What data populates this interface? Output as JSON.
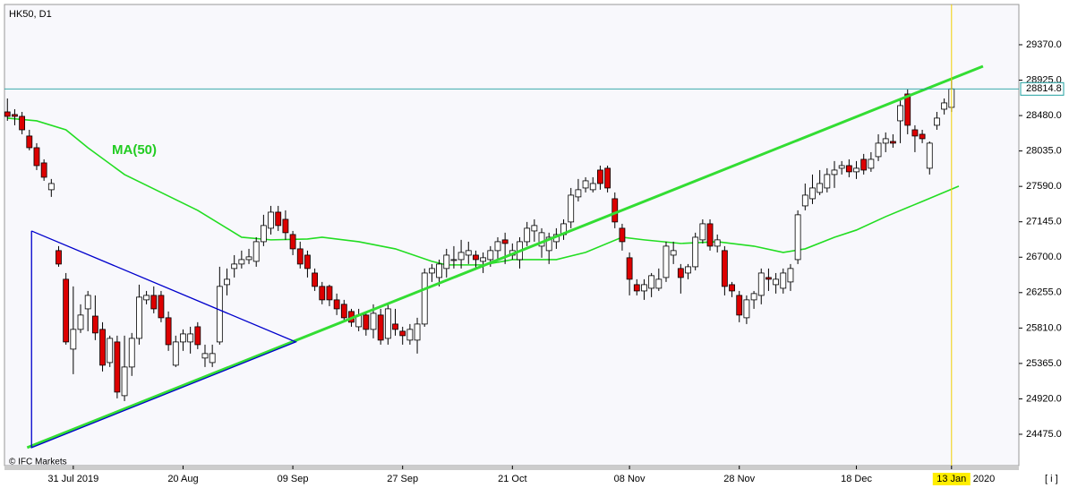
{
  "chart_data": {
    "type": "candlestick",
    "title": "HK50, D1",
    "ma_label": "MA(50)",
    "watermark": "© IFC Markets",
    "info_button": "[ i ]",
    "year_marker": "2020",
    "categories": [
      null,
      null,
      null,
      null,
      null,
      null,
      null,
      null,
      null,
      "31 Jul 2019",
      null,
      null,
      null,
      null,
      null,
      null,
      null,
      null,
      null,
      null,
      null,
      null,
      null,
      null,
      "20 Aug",
      null,
      null,
      null,
      null,
      null,
      null,
      null,
      null,
      null,
      null,
      null,
      null,
      null,
      null,
      "09 Sep",
      null,
      null,
      null,
      null,
      null,
      null,
      null,
      null,
      null,
      null,
      null,
      null,
      null,
      null,
      "27 Sep",
      null,
      null,
      null,
      null,
      null,
      null,
      null,
      null,
      null,
      null,
      null,
      null,
      null,
      null,
      "21 Oct",
      null,
      null,
      null,
      null,
      null,
      null,
      null,
      null,
      null,
      null,
      null,
      null,
      null,
      null,
      null,
      "08 Nov",
      null,
      null,
      null,
      null,
      null,
      null,
      null,
      null,
      null,
      null,
      null,
      null,
      null,
      null,
      "28 Nov",
      null,
      null,
      null,
      null,
      null,
      null,
      null,
      null,
      null,
      null,
      null,
      null,
      null,
      null,
      null,
      "18 Dec",
      null,
      null,
      null,
      null,
      null,
      null,
      null,
      null,
      null,
      null,
      null,
      null,
      "13 Jan"
    ],
    "candles": [
      [
        28526,
        28695,
        28414,
        28470
      ],
      [
        28493,
        28560,
        28358,
        28470
      ],
      [
        28470,
        28526,
        28245,
        28301
      ],
      [
        28223,
        28301,
        28043,
        28076
      ],
      [
        28076,
        28133,
        27795,
        27851
      ],
      [
        27885,
        27930,
        27660,
        27705
      ],
      [
        27548,
        27683,
        27458,
        27626
      ],
      [
        26783,
        26839,
        26580,
        26614
      ],
      [
        26423,
        26501,
        25601,
        25635
      ],
      [
        25545,
        26333,
        25230,
        25793
      ],
      [
        25793,
        26108,
        25748,
        25973
      ],
      [
        26051,
        26276,
        25770,
        26220
      ],
      [
        25960,
        26220,
        25658,
        25748
      ],
      [
        25793,
        25883,
        25264,
        25343
      ],
      [
        25376,
        25714,
        25320,
        25680
      ],
      [
        25635,
        25714,
        24926,
        25005
      ],
      [
        24960,
        25714,
        24892,
        25320
      ],
      [
        25320,
        25748,
        25208,
        25680
      ],
      [
        25680,
        26355,
        25601,
        26198
      ],
      [
        26164,
        26276,
        26108,
        26220
      ],
      [
        26220,
        26333,
        25995,
        26051
      ],
      [
        26220,
        26276,
        25883,
        25939
      ],
      [
        25939,
        26018,
        25523,
        25601
      ],
      [
        25343,
        25714,
        25320,
        25635
      ],
      [
        25635,
        25793,
        25523,
        25736
      ],
      [
        25635,
        25826,
        25489,
        25736
      ],
      [
        25826,
        25883,
        25545,
        25601
      ],
      [
        25433,
        25601,
        25320,
        25489
      ],
      [
        25376,
        25601,
        25320,
        25489
      ],
      [
        25635,
        26580,
        25601,
        26333
      ],
      [
        26355,
        26558,
        26220,
        26423
      ],
      [
        26558,
        26726,
        26445,
        26614
      ],
      [
        26614,
        26783,
        26558,
        26670
      ],
      [
        26670,
        26805,
        26614,
        26704
      ],
      [
        26648,
        26951,
        26580,
        26895
      ],
      [
        26895,
        27233,
        26839,
        27098
      ],
      [
        27064,
        27345,
        26985,
        27266
      ],
      [
        27266,
        27345,
        27030,
        27098
      ],
      [
        27176,
        27289,
        26918,
        27008
      ],
      [
        26985,
        27030,
        26726,
        26805
      ],
      [
        26805,
        26895,
        26558,
        26614
      ],
      [
        26726,
        26783,
        26445,
        26558
      ],
      [
        26501,
        26558,
        26276,
        26333
      ],
      [
        26333,
        26389,
        26108,
        26164
      ],
      [
        26333,
        26355,
        26085,
        26164
      ],
      [
        26164,
        26243,
        25973,
        26051
      ],
      [
        26108,
        26164,
        25883,
        25939
      ],
      [
        26018,
        26051,
        25826,
        25883
      ],
      [
        25826,
        26051,
        25770,
        25973
      ],
      [
        25973,
        26018,
        25714,
        25793
      ],
      [
        25793,
        26108,
        25680,
        25995
      ],
      [
        25973,
        26051,
        25601,
        25658
      ],
      [
        25680,
        26108,
        25601,
        26051
      ],
      [
        25860,
        26051,
        25714,
        25793
      ],
      [
        25770,
        25826,
        25601,
        25714
      ],
      [
        25658,
        25860,
        25601,
        25793
      ],
      [
        25658,
        25939,
        25489,
        25860
      ],
      [
        25860,
        26558,
        25826,
        26501
      ],
      [
        26501,
        26614,
        26389,
        26558
      ],
      [
        26445,
        26670,
        26333,
        26614
      ],
      [
        26558,
        26805,
        26445,
        26726
      ],
      [
        26670,
        26839,
        26558,
        26670
      ],
      [
        26670,
        26918,
        26558,
        26760
      ],
      [
        26726,
        26895,
        26614,
        26783
      ],
      [
        26726,
        26783,
        26558,
        26670
      ],
      [
        26648,
        26760,
        26501,
        26693
      ],
      [
        26670,
        26839,
        26580,
        26783
      ],
      [
        26783,
        26951,
        26670,
        26895
      ],
      [
        26918,
        27008,
        26614,
        26873
      ],
      [
        26726,
        26873,
        26670,
        26783
      ],
      [
        26670,
        26951,
        26558,
        26895
      ],
      [
        26895,
        27143,
        26839,
        27064
      ],
      [
        27030,
        27176,
        26895,
        27098
      ],
      [
        26839,
        27064,
        26693,
        27008
      ],
      [
        26783,
        27008,
        26614,
        26951
      ],
      [
        26895,
        27064,
        26805,
        26985
      ],
      [
        26985,
        27176,
        26918,
        27120
      ],
      [
        27143,
        27570,
        27064,
        27480
      ],
      [
        27458,
        27683,
        27401,
        27548
      ],
      [
        27570,
        27705,
        27514,
        27660
      ],
      [
        27548,
        27705,
        27514,
        27626
      ],
      [
        27795,
        27851,
        27548,
        27626
      ],
      [
        27818,
        27851,
        27514,
        27570
      ],
      [
        27435,
        27514,
        27064,
        27143
      ],
      [
        27064,
        27120,
        26783,
        26895
      ],
      [
        26693,
        26760,
        26220,
        26423
      ],
      [
        26355,
        26423,
        26220,
        26276
      ],
      [
        26276,
        26423,
        26164,
        26355
      ],
      [
        26310,
        26501,
        26198,
        26468
      ],
      [
        26310,
        26558,
        26276,
        26423
      ],
      [
        26445,
        26895,
        26389,
        26839
      ],
      [
        26726,
        26895,
        26614,
        26783
      ],
      [
        26558,
        26614,
        26243,
        26445
      ],
      [
        26501,
        26614,
        26423,
        26580
      ],
      [
        26580,
        27008,
        26535,
        26951
      ],
      [
        26918,
        27176,
        26873,
        27120
      ],
      [
        27120,
        27176,
        26783,
        26839
      ],
      [
        26839,
        26985,
        26760,
        26918
      ],
      [
        26783,
        26839,
        26220,
        26333
      ],
      [
        26355,
        26389,
        26198,
        26276
      ],
      [
        26220,
        26276,
        25883,
        25973
      ],
      [
        25939,
        26220,
        25860,
        26164
      ],
      [
        26164,
        26276,
        26051,
        26243
      ],
      [
        26220,
        26558,
        26108,
        26501
      ],
      [
        26445,
        26558,
        26276,
        26423
      ],
      [
        26355,
        26501,
        26243,
        26423
      ],
      [
        26310,
        26558,
        26243,
        26501
      ],
      [
        26389,
        26614,
        26276,
        26558
      ],
      [
        26670,
        27289,
        26614,
        27233
      ],
      [
        27345,
        27626,
        27289,
        27480
      ],
      [
        27435,
        27739,
        27368,
        27570
      ],
      [
        27514,
        27795,
        27480,
        27626
      ],
      [
        27570,
        27818,
        27514,
        27739
      ],
      [
        27739,
        27908,
        27570,
        27795
      ],
      [
        27818,
        27908,
        27739,
        27851
      ],
      [
        27851,
        27930,
        27705,
        27773
      ],
      [
        27773,
        27908,
        27683,
        27818
      ],
      [
        27930,
        27998,
        27739,
        27795
      ],
      [
        27818,
        28020,
        27773,
        27930
      ],
      [
        27964,
        28245,
        27908,
        28133
      ],
      [
        28133,
        28268,
        28020,
        28189
      ],
      [
        28155,
        28245,
        28076,
        28133
      ],
      [
        28414,
        28695,
        28133,
        28605
      ],
      [
        28751,
        28808,
        28245,
        28358
      ],
      [
        28301,
        28358,
        28020,
        28223
      ],
      [
        28245,
        28301,
        28133,
        28189
      ],
      [
        27818,
        28155,
        27739,
        28133
      ],
      [
        28358,
        28526,
        28301,
        28448
      ],
      [
        28560,
        28695,
        28493,
        28639
      ],
      [
        28583,
        28943,
        28526,
        28814.8
      ]
    ],
    "ma": {
      "name": "MA(50)",
      "color": "#22dd22",
      "x": [
        0,
        4,
        8,
        11,
        16,
        21,
        26,
        30,
        32,
        36,
        41,
        43,
        48,
        53,
        58,
        60,
        65,
        69,
        75,
        79,
        84,
        87,
        92,
        97,
        102,
        106,
        109,
        113,
        116,
        120,
        125,
        130
      ],
      "values": [
        28448,
        28414,
        28301,
        28076,
        27739,
        27514,
        27289,
        27064,
        26951,
        26918,
        26929,
        26951,
        26895,
        26805,
        26648,
        26603,
        26603,
        26670,
        26670,
        26760,
        26951,
        26918,
        26873,
        26895,
        26839,
        26760,
        26805,
        26951,
        27041,
        27210,
        27401,
        27593
      ]
    },
    "trendlines": [
      {
        "color": "#33dd33",
        "x": [
          2.7,
          133.3
        ],
        "values": [
          24307,
          29100
        ]
      },
      {
        "color": "#0000cc",
        "x": [
          3.3,
          3.3,
          39.4,
          3.3
        ],
        "values": [
          27030,
          24307,
          25635,
          27030
        ]
      }
    ],
    "up_color": "#ffffff",
    "down_color": "#dd0000",
    "xlim": [
      -0.4,
      138.2
    ],
    "ylim": [
      24081,
      29876
    ],
    "yticks": [
      {
        "value": 29370,
        "label": "29370.0"
      },
      {
        "value": 28925,
        "label": "28925.0"
      },
      {
        "value": 28480,
        "label": "28480.0"
      },
      {
        "value": 28035,
        "label": "28035.0"
      },
      {
        "value": 27590,
        "label": "27590.0"
      },
      {
        "value": 27145,
        "label": "27145.0"
      },
      {
        "value": 26700,
        "label": "26700.0"
      },
      {
        "value": 26255,
        "label": "26255.0"
      },
      {
        "value": 25810,
        "label": "25810.0"
      },
      {
        "value": 25365,
        "label": "25365.0"
      },
      {
        "value": 24920,
        "label": "24920.0"
      },
      {
        "value": 24475,
        "label": "24475.0"
      }
    ]
  }
}
